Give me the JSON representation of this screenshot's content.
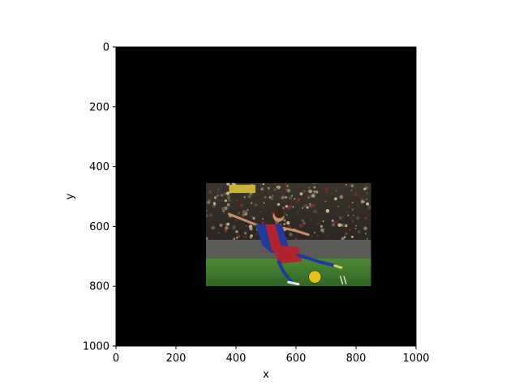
{
  "chart_data": {
    "type": "image",
    "xlabel": "x",
    "ylabel": "y",
    "xlim": [
      0,
      1000
    ],
    "ylim": [
      1000,
      0
    ],
    "x_inverted": false,
    "y_inverted": true,
    "xticks": [
      0,
      200,
      400,
      600,
      800,
      1000
    ],
    "yticks": [
      0,
      200,
      400,
      600,
      800,
      1000
    ],
    "xtick_labels": [
      "0",
      "200",
      "400",
      "600",
      "800",
      "1000"
    ],
    "ytick_labels": [
      "0",
      "200",
      "400",
      "600",
      "800",
      "1000"
    ],
    "background_color": "#000000",
    "inset_image": {
      "description_icon": "soccer-player-photo",
      "extent": {
        "x0": 300,
        "x1": 850,
        "y0": 455,
        "y1": 800
      },
      "colors": {
        "crowd": "#2a2622",
        "pitch": "#3f7a2e",
        "shirt_blue": "#223a9a",
        "shirt_red": "#b0242e",
        "skin": "#c98d6a",
        "ball": "#e8c21c"
      }
    }
  }
}
